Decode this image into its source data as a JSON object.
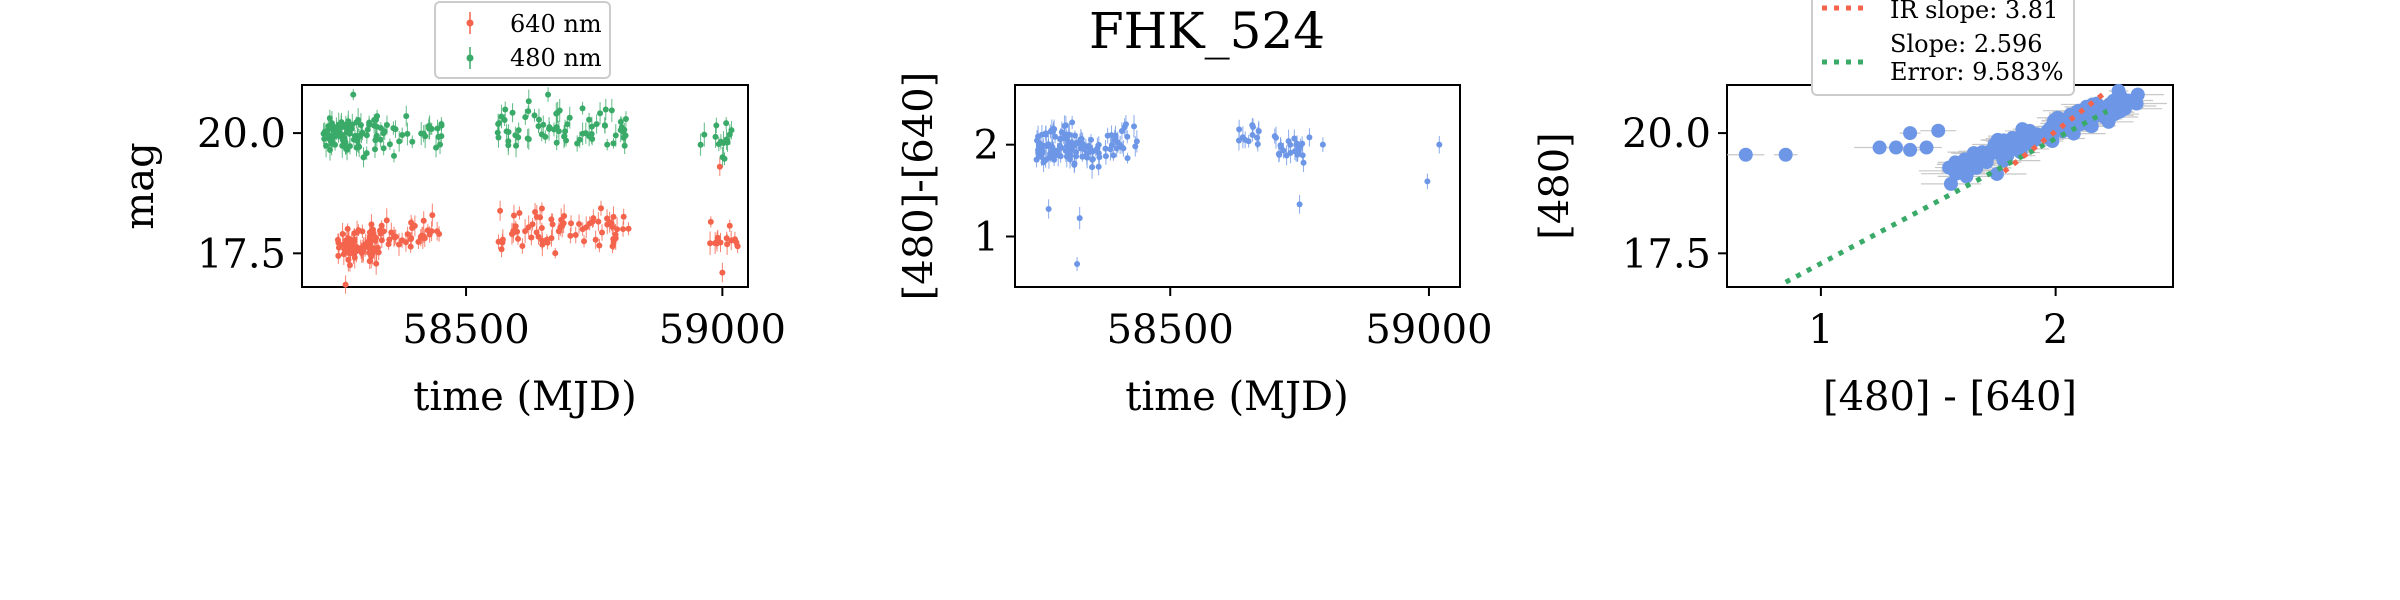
{
  "title": "FHK_524",
  "colors": {
    "red": "#f4634c",
    "green": "#3aaa68",
    "blue": "#6d97e6",
    "errorbar": "#c8c8c8"
  },
  "chart_data": [
    {
      "type": "scatter",
      "xlabel": "time (MJD)",
      "ylabel": "mag",
      "xlim": [
        58180,
        59050
      ],
      "ylim": [
        21.0,
        16.8
      ],
      "xticks": [
        58500,
        59000
      ],
      "yticks": [
        17.5,
        20.0
      ],
      "xtick_labels": [
        "58500",
        "59000"
      ],
      "ytick_labels": [
        "17.5",
        "20.0"
      ],
      "legend": {
        "placement": "above-top-center",
        "entries": [
          "640 nm",
          "480 nm"
        ]
      },
      "series": [
        {
          "name": "640 nm",
          "color": "#f4634c",
          "segments": [
            {
              "x_from": 58250,
              "x_to": 58330,
              "y_mean": 17.7,
              "spread": 0.45,
              "count": 70
            },
            {
              "x_from": 58330,
              "x_to": 58450,
              "y_mean": 17.9,
              "spread": 0.4,
              "count": 35
            },
            {
              "x_from": 58560,
              "x_to": 58820,
              "y_mean": 18.0,
              "spread": 0.45,
              "count": 70
            },
            {
              "x_from": 58975,
              "x_to": 59030,
              "y_mean": 17.8,
              "spread": 0.4,
              "count": 14
            }
          ],
          "points": [
            {
              "x": 58265,
              "y": 16.85
            },
            {
              "x": 58995,
              "y": 19.3
            },
            {
              "x": 59000,
              "y": 17.1
            }
          ]
        },
        {
          "name": "480 nm",
          "color": "#3aaa68",
          "segments": [
            {
              "x_from": 58220,
              "x_to": 58330,
              "y_mean": 20.0,
              "spread": 0.5,
              "count": 80
            },
            {
              "x_from": 58330,
              "x_to": 58460,
              "y_mean": 20.0,
              "spread": 0.4,
              "count": 30
            },
            {
              "x_from": 58560,
              "x_to": 58820,
              "y_mean": 20.1,
              "spread": 0.5,
              "count": 70
            },
            {
              "x_from": 58950,
              "x_to": 59030,
              "y_mean": 19.9,
              "spread": 0.4,
              "count": 14
            }
          ],
          "points": [
            {
              "x": 58280,
              "y": 20.8
            },
            {
              "x": 58660,
              "y": 20.8
            }
          ]
        }
      ]
    },
    {
      "type": "scatter",
      "xlabel": "time (MJD)",
      "ylabel": "[480]-[640]",
      "xlim": [
        58200,
        59060
      ],
      "ylim": [
        2.65,
        0.45
      ],
      "xticks": [
        58500,
        59000
      ],
      "yticks": [
        1,
        2
      ],
      "xtick_labels": [
        "58500",
        "59000"
      ],
      "ytick_labels": [
        "1",
        "2"
      ],
      "series": [
        {
          "name": "",
          "color": "#6d97e6",
          "segments": [
            {
              "x_from": 58240,
              "x_to": 58400,
              "y_mean": 2.0,
              "spread": 0.22,
              "count": 110
            },
            {
              "x_from": 58400,
              "x_to": 58440,
              "y_mean": 2.05,
              "spread": 0.18,
              "count": 10
            },
            {
              "x_from": 58630,
              "x_to": 58680,
              "y_mean": 2.1,
              "spread": 0.15,
              "count": 12
            },
            {
              "x_from": 58700,
              "x_to": 58770,
              "y_mean": 1.95,
              "spread": 0.2,
              "count": 25
            }
          ],
          "points": [
            {
              "x": 58265,
              "y": 1.3
            },
            {
              "x": 58320,
              "y": 0.7
            },
            {
              "x": 58325,
              "y": 1.2
            },
            {
              "x": 58430,
              "y": 2.2
            },
            {
              "x": 58750,
              "y": 1.35
            },
            {
              "x": 58795,
              "y": 2.0
            },
            {
              "x": 58997,
              "y": 1.6
            },
            {
              "x": 59020,
              "y": 2.0
            }
          ]
        }
      ]
    },
    {
      "type": "scatter",
      "xlabel": "[480] - [640]",
      "ylabel": "[480]",
      "xlim": [
        0.6,
        2.5
      ],
      "ylim": [
        21.0,
        16.8
      ],
      "xticks": [
        1,
        2
      ],
      "yticks": [
        17.5,
        20.0
      ],
      "xtick_labels": [
        "1",
        "2"
      ],
      "ytick_labels": [
        "17.5",
        "20.0"
      ],
      "legend": {
        "placement": "above-top-center",
        "entries": [
          "IR slope: 3.81",
          "Slope: 2.596\nError: 9.583%"
        ]
      },
      "series": [
        {
          "name": "",
          "color": "#6d97e6",
          "cluster": {
            "x_from": 1.55,
            "x_to": 2.3,
            "y_from": 19.2,
            "y_to": 20.7,
            "count": 140
          },
          "points": [
            {
              "x": 0.68,
              "y": 19.55
            },
            {
              "x": 0.85,
              "y": 19.55
            },
            {
              "x": 1.25,
              "y": 19.7
            },
            {
              "x": 1.32,
              "y": 19.7
            },
            {
              "x": 1.38,
              "y": 19.65
            },
            {
              "x": 1.45,
              "y": 19.7
            },
            {
              "x": 1.38,
              "y": 20.0
            },
            {
              "x": 1.5,
              "y": 20.05
            },
            {
              "x": 1.62,
              "y": 19.1
            },
            {
              "x": 1.75,
              "y": 19.15
            },
            {
              "x": 2.35,
              "y": 20.8
            }
          ]
        }
      ],
      "fit_lines": [
        {
          "name": "IR slope: 3.81",
          "color": "#f4634c",
          "slope": 3.81,
          "x_from": 1.78,
          "x_to": 2.22,
          "y_at_from": 19.2
        },
        {
          "name": "Slope: 2.596\nError: 9.583%",
          "color": "#3aaa68",
          "slope": 2.596,
          "x_from": 0.85,
          "x_to": 2.22,
          "y_at_from": 16.9
        }
      ]
    }
  ]
}
